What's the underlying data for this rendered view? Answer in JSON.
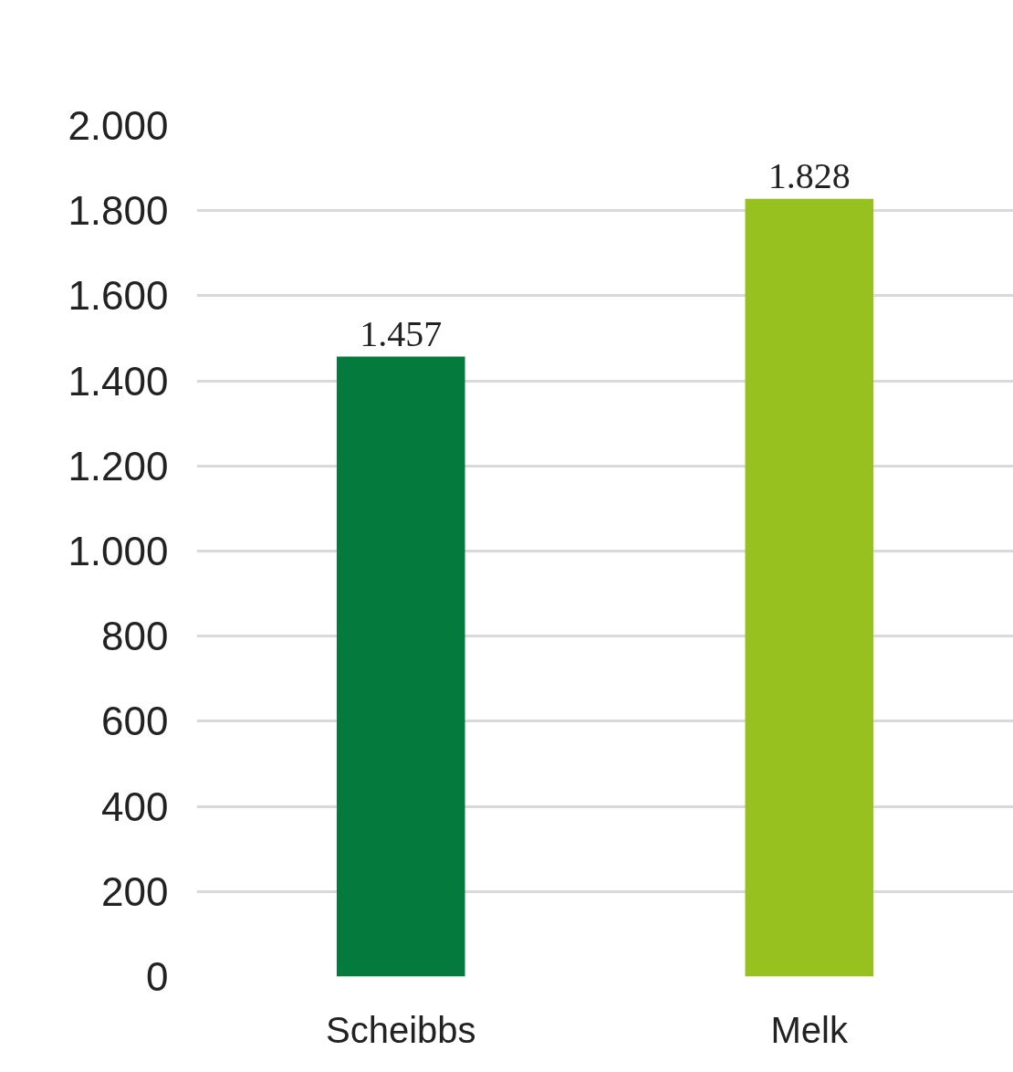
{
  "chart_data": {
    "type": "bar",
    "categories": [
      "Scheibbs",
      "Melk"
    ],
    "values": [
      1457,
      1828
    ],
    "colors": [
      "#047a3c",
      "#96c11f"
    ],
    "value_labels": [
      "1.457",
      "1.828"
    ],
    "ylim": [
      0,
      2000
    ],
    "yticks": [
      {
        "value": 0,
        "label": "0"
      },
      {
        "value": 200,
        "label": "200"
      },
      {
        "value": 400,
        "label": "400"
      },
      {
        "value": 600,
        "label": "600"
      },
      {
        "value": 800,
        "label": "800"
      },
      {
        "value": 1000,
        "label": "1.000"
      },
      {
        "value": 1200,
        "label": "1.200"
      },
      {
        "value": 1400,
        "label": "1.400"
      },
      {
        "value": 1600,
        "label": "1.600"
      },
      {
        "value": 1800,
        "label": "1.800"
      },
      {
        "value": 2000,
        "label": "2.000"
      }
    ],
    "grid": "y"
  }
}
